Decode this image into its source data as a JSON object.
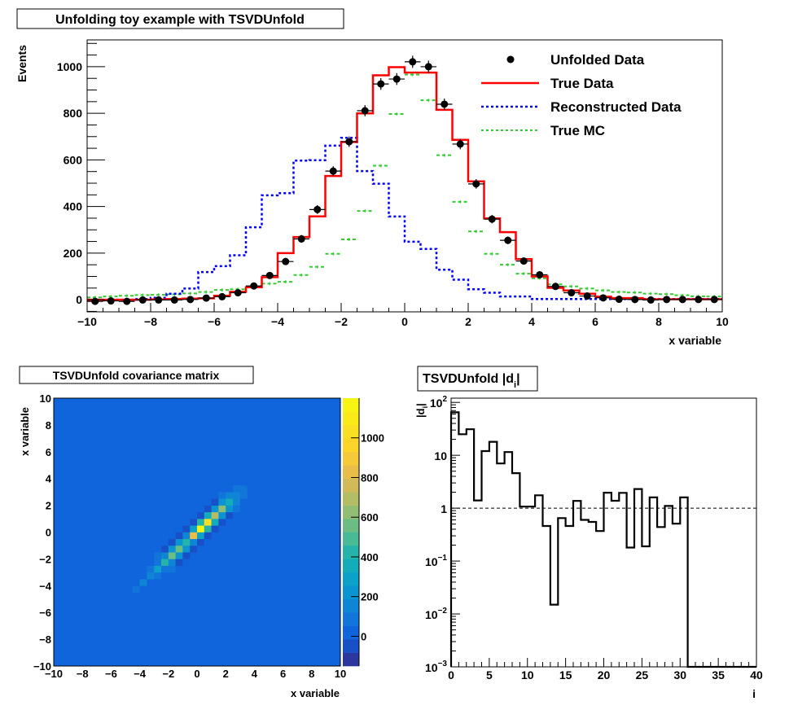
{
  "chart_data": [
    {
      "type": "line",
      "title": "Unfolding toy example with TSVDUnfold",
      "xlabel": "x variable",
      "ylabel": "Events",
      "xlim": [
        -10,
        10
      ],
      "ylim": [
        -52,
        1115
      ],
      "x_ticks": [
        -10,
        -8,
        -6,
        -4,
        -2,
        0,
        2,
        4,
        6,
        8,
        10
      ],
      "y_ticks": [
        0,
        200,
        400,
        600,
        800,
        1000
      ],
      "bin_edges_start": -10,
      "bin_width": 0.5,
      "legend_position": "top-right",
      "legend": [
        "Unfolded Data",
        "True Data",
        "Reconstructed Data",
        "True MC"
      ],
      "series": [
        {
          "name": "Unfolded Data",
          "style": "points",
          "color": "#000000",
          "values": [
            -7,
            -5,
            -7,
            -1,
            -1,
            -1,
            1,
            7,
            13,
            30,
            59,
            104,
            164,
            261,
            387,
            552,
            678,
            811,
            926,
            947,
            1021,
            1000,
            839,
            668,
            497,
            346,
            255,
            166,
            107,
            57,
            30,
            16,
            8,
            2,
            1,
            -1,
            1,
            1,
            1,
            1
          ]
        },
        {
          "name": "True Data",
          "style": "solid",
          "color": "#ff0000",
          "values": [
            0,
            0,
            0,
            0,
            1,
            3,
            5,
            6,
            17,
            34,
            54,
            97,
            200,
            269,
            358,
            531,
            677,
            800,
            963,
            998,
            975,
            975,
            815,
            686,
            508,
            349,
            290,
            174,
            100,
            51,
            40,
            26,
            13,
            7,
            7,
            2,
            2,
            2,
            2,
            2
          ]
        },
        {
          "name": "Reconstructed Data",
          "style": "dotted",
          "color": "#0000ff",
          "values": [
            0,
            0,
            0,
            3,
            8,
            26,
            48,
            119,
            144,
            191,
            311,
            448,
            457,
            597,
            599,
            661,
            695,
            552,
            498,
            357,
            249,
            218,
            129,
            86,
            45,
            30,
            14,
            14,
            3,
            3,
            3,
            3,
            3,
            3,
            3,
            3,
            3,
            3,
            3,
            3
          ]
        },
        {
          "name": "True MC",
          "style": "dashed",
          "color": "#33cc33",
          "values": [
            10,
            14,
            17,
            20,
            21,
            23,
            27,
            33,
            42,
            45,
            57,
            69,
            77,
            106,
            141,
            197,
            259,
            381,
            575,
            797,
            966,
            856,
            620,
            420,
            293,
            197,
            150,
            112,
            92,
            66,
            57,
            48,
            40,
            33,
            31,
            26,
            24,
            19,
            15,
            14
          ]
        }
      ]
    },
    {
      "type": "heatmap",
      "title": "TSVDUnfold covariance matrix",
      "xlabel": "x variable",
      "ylabel": "x variable",
      "xlim": [
        -10,
        10
      ],
      "ylim": [
        -10,
        10
      ],
      "x_ticks": [
        -10,
        -8,
        -6,
        -4,
        -2,
        0,
        2,
        4,
        6,
        8,
        10
      ],
      "y_ticks": [
        -10,
        -8,
        -6,
        -4,
        -2,
        0,
        2,
        4,
        6,
        8,
        10
      ],
      "zlim": [
        -150,
        1200
      ],
      "z_ticks": [
        0,
        200,
        400,
        600,
        800,
        1000
      ],
      "bins": 40,
      "description": "Covariance concentrated along the diagonal between roughly x=-4 and x=4, peak ~1150 at (0.25,0.25); slight negative anticorrelation bands adjacent to diagonal; ~0 elsewhere",
      "diagonal_peak": 1150,
      "diagonal_profile": {
        "x": [
          -4.25,
          -3.75,
          -3.25,
          -2.75,
          -2.25,
          -1.75,
          -1.25,
          -0.75,
          -0.25,
          0.25,
          0.75,
          1.25,
          1.75,
          2.25,
          2.75,
          3.25
        ],
        "values": [
          60,
          120,
          180,
          300,
          430,
          560,
          540,
          430,
          860,
          1150,
          1050,
          700,
          600,
          350,
          150,
          60
        ]
      }
    },
    {
      "type": "bar",
      "title": "TSVDUnfold |d_i|",
      "xlabel": "i",
      "ylabel": "|d_i|",
      "xlim": [
        0,
        40
      ],
      "ylim": [
        0.001,
        100
      ],
      "yscale": "log",
      "x_ticks": [
        0,
        5,
        10,
        15,
        20,
        25,
        30,
        35,
        40
      ],
      "y_ticks": [
        "10^-3",
        "10^-2",
        "10^-1",
        "1",
        "10",
        "10^2"
      ],
      "reference_line": 1,
      "categories": [
        0,
        1,
        2,
        3,
        4,
        5,
        6,
        7,
        8,
        9,
        10,
        11,
        12,
        13,
        14,
        15,
        16,
        17,
        18,
        19,
        20,
        21,
        22,
        23,
        24,
        25,
        26,
        27,
        28,
        29,
        30,
        31,
        32,
        33,
        34,
        35,
        36,
        37,
        38,
        39
      ],
      "values": [
        65,
        25,
        31,
        1.4,
        12,
        18,
        7,
        11.5,
        4.6,
        1.07,
        1.07,
        1.75,
        0.46,
        0.015,
        0.65,
        0.46,
        1.37,
        0.6,
        0.55,
        0.37,
        1.96,
        1.38,
        1.95,
        0.18,
        2.3,
        0.19,
        1.6,
        0.44,
        1.1,
        0.51,
        1.6,
        0.001,
        0.001,
        0.001,
        0.001,
        0.001,
        0.001,
        0.001,
        0.001,
        0.001
      ]
    }
  ]
}
